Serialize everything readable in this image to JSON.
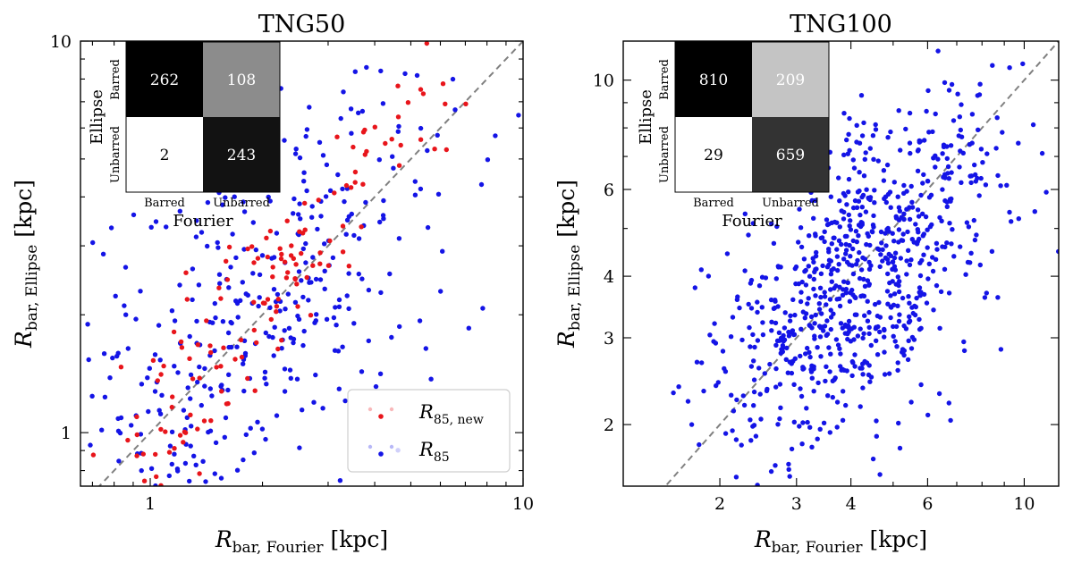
{
  "chart_data": [
    {
      "type": "scatter",
      "title": "TNG50",
      "xlabel": "R_{bar, Fourier} [kpc]",
      "ylabel": "R_{bar, Ellipse} [kpc]",
      "xscale": "log",
      "yscale": "log",
      "xlim": [
        0.65,
        10
      ],
      "ylim": [
        0.73,
        10
      ],
      "xticks": [
        1,
        10
      ],
      "yticks": [
        1,
        10
      ],
      "xtick_labels": [
        "1",
        "10"
      ],
      "ytick_labels": [
        "1",
        "10"
      ],
      "diagonal": "one-to-one dashed grey line",
      "legend": {
        "placement": "bottom-right",
        "entries": [
          {
            "label_main": "R",
            "label_sub": "85, new",
            "color": "#e8151b"
          },
          {
            "label_main": "R",
            "label_sub": "85",
            "color": "#1414e6"
          }
        ]
      },
      "confusion_matrix": {
        "row_title": "Ellipse",
        "col_title": "Fourier",
        "row_labels": [
          "Barred",
          "Unbarred"
        ],
        "col_labels": [
          "Barred",
          "Unbarred"
        ],
        "cells": [
          [
            262,
            108
          ],
          [
            2,
            243
          ]
        ],
        "cell_colors": [
          [
            "#000000",
            "#8c8c8c"
          ],
          [
            "#ffffff",
            "#121212"
          ]
        ],
        "text_colors": [
          [
            "#ffffff",
            "#ffffff"
          ],
          [
            "#000000",
            "#ffffff"
          ]
        ]
      },
      "series": [
        {
          "name": "R85",
          "color": "#1414e6",
          "generated": {
            "seed": 7,
            "n": 360,
            "center": [
              1.95,
              1.95
            ],
            "spread_x": 0.26,
            "spread_y": 0.32,
            "correlation": 0.55
          }
        },
        {
          "name": "R85,new",
          "color": "#e8151b",
          "generated": {
            "seed": 19,
            "n": 140,
            "center": [
              2.1,
              2.3
            ],
            "spread_x": 0.24,
            "spread_y": 0.28,
            "correlation": 0.92
          }
        }
      ]
    },
    {
      "type": "scatter",
      "title": "TNG100",
      "xlabel": "R_{bar, Fourier} [kpc]",
      "ylabel": "R_{bar, Ellipse} [kpc]",
      "xscale": "log",
      "yscale": "log",
      "xlim": [
        1.2,
        12
      ],
      "ylim": [
        1.5,
        12
      ],
      "xticks": [
        2,
        3,
        4,
        6,
        10
      ],
      "yticks": [
        2,
        3,
        4,
        6,
        10
      ],
      "xtick_labels": [
        "2",
        "3",
        "4",
        "6",
        "10"
      ],
      "ytick_labels": [
        "2",
        "3",
        "4",
        "6",
        "10"
      ],
      "diagonal": "one-to-one dashed grey line",
      "confusion_matrix": {
        "row_title": "Ellipse",
        "col_title": "Fourier",
        "row_labels": [
          "Barred",
          "Unbarred"
        ],
        "col_labels": [
          "Barred",
          "Unbarred"
        ],
        "cells": [
          [
            810,
            209
          ],
          [
            29,
            659
          ]
        ],
        "cell_colors": [
          [
            "#000000",
            "#c4c4c4"
          ],
          [
            "#ffffff",
            "#333333"
          ]
        ],
        "text_colors": [
          [
            "#ffffff",
            "#ffffff"
          ],
          [
            "#000000",
            "#ffffff"
          ]
        ]
      },
      "series": [
        {
          "name": "R85",
          "color": "#1414e6",
          "generated": {
            "seed": 41,
            "n": 800,
            "center": [
              4.2,
              4.0
            ],
            "spread_x": 0.16,
            "spread_y": 0.18,
            "correlation": 0.55
          }
        }
      ]
    }
  ]
}
